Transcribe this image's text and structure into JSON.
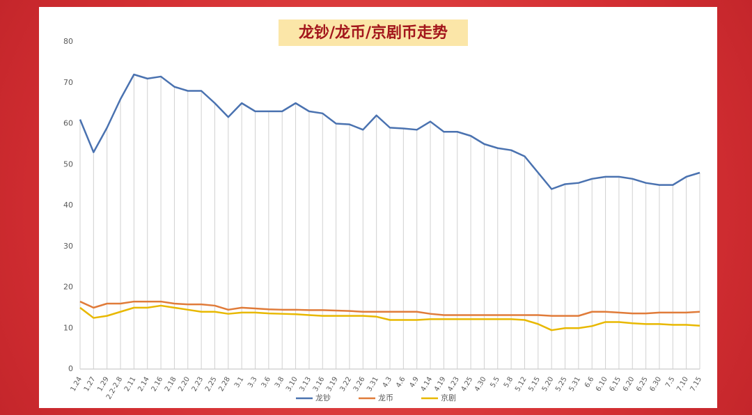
{
  "chart_data": {
    "type": "line",
    "title": "龙钞/龙币/京剧币走势",
    "categories": [
      "1.24",
      "1.27",
      "1.29",
      "2.2-2.8",
      "2.11",
      "2.14",
      "2.16",
      "2.18",
      "2.20",
      "2.23",
      "2.25",
      "2.28",
      "3.1",
      "3.3",
      "3.6",
      "3.8",
      "3.10",
      "3.13",
      "3.16",
      "3.19",
      "3.22",
      "3.26",
      "3.31",
      "4.3",
      "4.6",
      "4.9",
      "4.14",
      "4.19",
      "4.23",
      "4.25",
      "4.30",
      "5.5",
      "5.8",
      "5.12",
      "5.15",
      "5.20",
      "5.25",
      "5.31",
      "6.6",
      "6.10",
      "6.15",
      "6.20",
      "6.25",
      "6.30",
      "7.5",
      "7.10",
      "7.15"
    ],
    "series": [
      {
        "name": "龙钞",
        "color": "#4a72b0",
        "values": [
          61,
          53,
          59,
          66,
          72,
          71,
          71.5,
          69,
          68,
          68,
          65,
          61.6,
          65,
          63,
          63,
          63,
          65,
          63,
          62.5,
          60,
          59.8,
          58.5,
          62,
          59,
          58.8,
          58.5,
          60.5,
          58,
          58,
          57,
          55,
          54,
          53.5,
          52,
          48,
          44,
          45.2,
          45.5,
          46.5,
          47,
          47,
          46.5,
          45.5,
          45,
          45,
          47,
          48
        ]
      },
      {
        "name": "龙币",
        "color": "#e07b39",
        "values": [
          16.5,
          15,
          16,
          16,
          16.5,
          16.5,
          16.5,
          16,
          15.8,
          15.8,
          15.5,
          14.5,
          15,
          14.8,
          14.6,
          14.5,
          14.5,
          14.4,
          14.4,
          14.3,
          14.2,
          14,
          14,
          14,
          14,
          14,
          13.5,
          13.2,
          13.2,
          13.2,
          13.2,
          13.2,
          13.2,
          13.2,
          13.2,
          13,
          13,
          13,
          14,
          14,
          13.8,
          13.6,
          13.6,
          13.8,
          13.8,
          13.8,
          14
        ]
      },
      {
        "name": "京剧",
        "color": "#e8b800",
        "values": [
          15,
          12.5,
          13,
          14,
          15,
          15,
          15.5,
          15,
          14.5,
          14,
          14,
          13.5,
          13.8,
          13.8,
          13.6,
          13.5,
          13.4,
          13.2,
          13,
          13,
          13,
          13,
          12.8,
          12,
          12,
          12,
          12.2,
          12.2,
          12.2,
          12.2,
          12.2,
          12.2,
          12.2,
          12,
          11,
          9.5,
          10,
          10,
          10.5,
          11.5,
          11.5,
          11.2,
          11,
          11,
          10.8,
          10.8,
          10.6
        ]
      }
    ],
    "ylim": [
      0,
      80
    ],
    "yticks": [
      0,
      10,
      20,
      30,
      40,
      50,
      60,
      70,
      80
    ],
    "droplines": true
  }
}
